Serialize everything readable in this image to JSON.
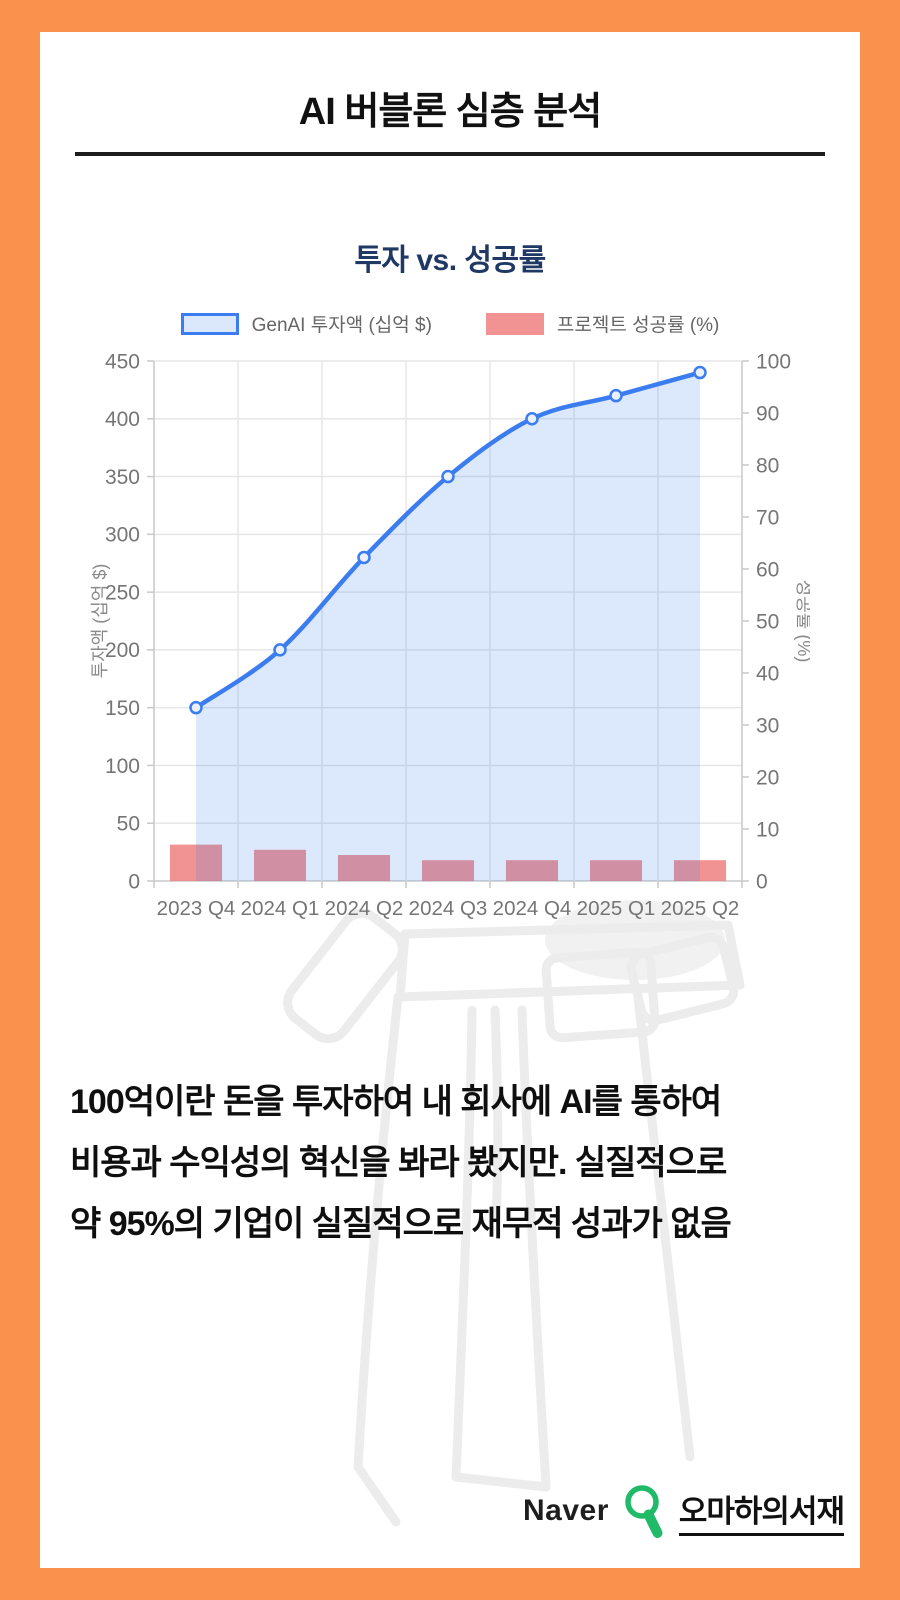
{
  "page": {
    "title": "AI 버블론 심층 분석",
    "body_lines": [
      "100억이란 돈을 투자하여 내 회사에 AI를 통하여",
      "비용과 수익성의 혁신을 봐라 봤지만. 실질적으로",
      "약 95%의 기업이 실질적으로 재무적 성과가 없음"
    ],
    "footer": {
      "brand": "Naver",
      "icon": "magnifier-icon",
      "channel": "오마하의서재"
    }
  },
  "colors": {
    "border_orange": "#FA914C",
    "card_bg": "#FFFFFF",
    "title_color": "#111111",
    "chart_title_color": "#1F3864",
    "line_blue": "#3B7DF0",
    "area_blue": "rgba(59,125,240,0.18)",
    "point_fill": "#EAF1FD",
    "bar_red": "rgba(240,128,128,0.85)",
    "legend_fill_blue": "#DBE7FB",
    "axis_text": "#757575",
    "axis_title_text": "#8A8A8A",
    "grid": "#E6E6E6",
    "axis_line": "#C9C9C9",
    "naver_green": "#20BA68",
    "text_color": "#0F0F0F"
  },
  "chart_data": {
    "type": "line+bar combo",
    "title": "투자 vs. 성공률",
    "categories": [
      "2023 Q4",
      "2024 Q1",
      "2024 Q2",
      "2024 Q3",
      "2024 Q4",
      "2025 Q1",
      "2025 Q2"
    ],
    "series": [
      {
        "name": "GenAI 투자액 (십억 $)",
        "type": "line",
        "axis": "left",
        "values": [
          150,
          200,
          280,
          350,
          400,
          420,
          440
        ]
      },
      {
        "name": "프로젝트 성공률 (%)",
        "type": "bar",
        "axis": "right",
        "values": [
          7,
          6,
          5,
          4,
          4,
          4,
          4
        ]
      }
    ],
    "left_axis": {
      "label": "투자액 (십억 $)",
      "min": 0,
      "max": 450,
      "step": 50
    },
    "right_axis": {
      "label": "성공률 (%)",
      "min": 0,
      "max": 100,
      "step": 10
    },
    "grid": true,
    "legend_position": "top"
  }
}
